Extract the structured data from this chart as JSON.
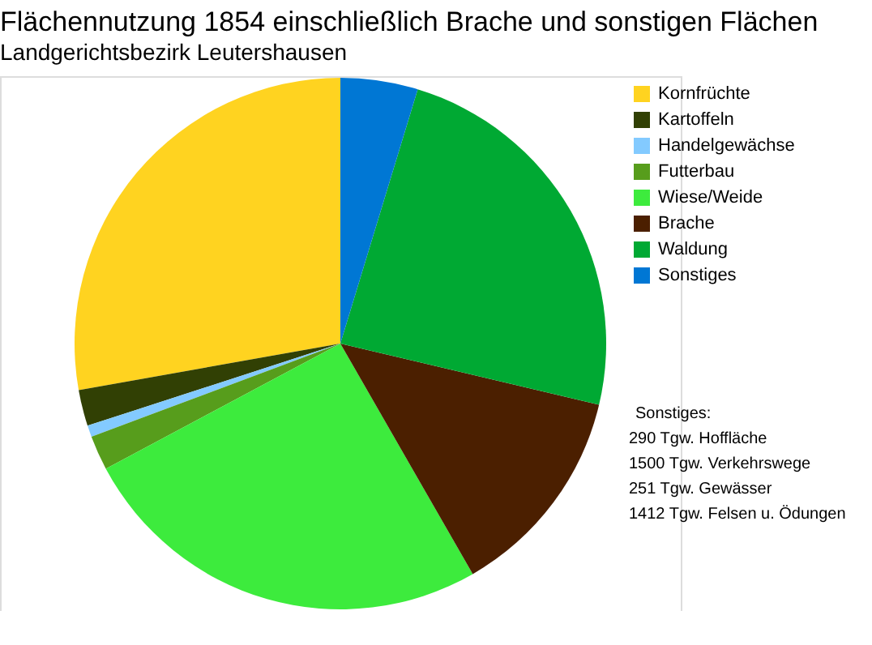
{
  "chart_data": {
    "type": "pie",
    "title": "Flächennutzung 1854 einschließlich Brache und sonstigen Flächen",
    "subtitle": "Landgerichtsbezirk Leutershausen",
    "categories": [
      "Kornfrüchte",
      "Kartoffeln",
      "Handelgewächse",
      "Futterbau",
      "Wiese/Weide",
      "Brache",
      "Waldung",
      "Sonstiges"
    ],
    "values": [
      27.8,
      2.2,
      0.7,
      2.1,
      25.5,
      13.0,
      24.0,
      4.7
    ],
    "colors": [
      "#ffd320",
      "#314004",
      "#83caff",
      "#579d1c",
      "#3deb3d",
      "#4b1f00",
      "#00a933",
      "#0077d4"
    ],
    "legend": "top right",
    "annotations": [
      "Sonstiges:",
      "  290 Tgw. Hoffläche",
      "1500 Tgw. Verkehrswege",
      "  251 Tgw. Gewässer",
      "1412 Tgw. Felsen u. Ödungen"
    ]
  }
}
